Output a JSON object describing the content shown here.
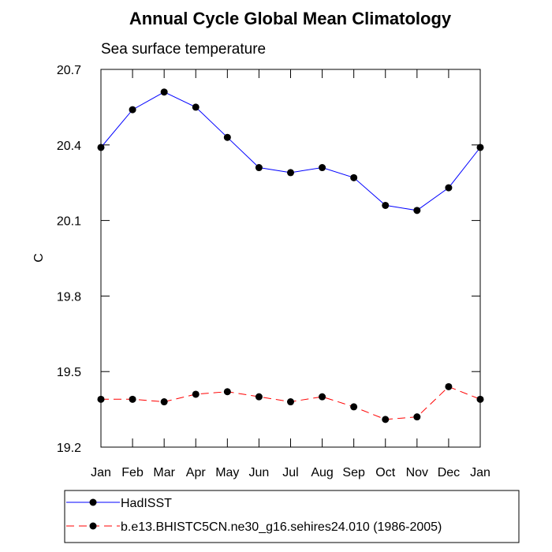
{
  "chart_data": {
    "type": "line",
    "title": "Annual Cycle Global Mean Climatology",
    "subtitle": "Sea surface temperature",
    "xlabel": "",
    "ylabel": "C",
    "categories": [
      "Jan",
      "Feb",
      "Mar",
      "Apr",
      "May",
      "Jun",
      "Jul",
      "Aug",
      "Sep",
      "Oct",
      "Nov",
      "Dec",
      "Jan"
    ],
    "ylim": [
      19.2,
      20.7
    ],
    "yticks": [
      19.2,
      19.5,
      19.8,
      20.1,
      20.4,
      20.7
    ],
    "ytick_labels": [
      "19.2",
      "19.5",
      "19.8",
      "20.1",
      "20.4",
      "20.7"
    ],
    "grid": false,
    "legend_position": "bottom",
    "series": [
      {
        "name": "HadISST",
        "color": "#0000ff",
        "line_style": "solid",
        "values": [
          20.39,
          20.54,
          20.61,
          20.55,
          20.43,
          20.31,
          20.29,
          20.31,
          20.27,
          20.16,
          20.14,
          20.23,
          20.39
        ]
      },
      {
        "name": "b.e13.BHISTC5CN.ne30_g16.sehires24.010 (1986-2005)",
        "color": "#ff0000",
        "line_style": "dashed",
        "values": [
          19.39,
          19.39,
          19.38,
          19.41,
          19.42,
          19.4,
          19.38,
          19.4,
          19.36,
          19.31,
          19.32,
          19.44,
          19.39
        ]
      }
    ]
  }
}
